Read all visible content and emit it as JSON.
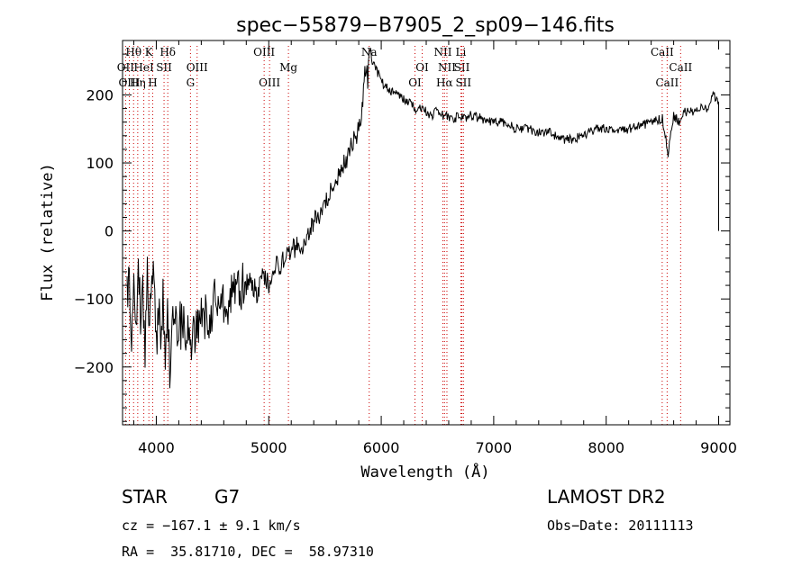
{
  "chart_data": {
    "type": "line",
    "title": "spec−55879−B7905_2_sp09−146.fits",
    "xlabel": "Wavelength (Å)",
    "ylabel": "Flux (relative)",
    "xlim": [
      3700,
      9100
    ],
    "ylim": [
      -285,
      280
    ],
    "x_ticks": [
      4000,
      5000,
      6000,
      7000,
      8000,
      9000
    ],
    "y_ticks": [
      -200,
      -100,
      0,
      100,
      200
    ],
    "grid": false,
    "line_color": "#000000",
    "marker_color": "#cc0000",
    "series": [
      {
        "x": [
          3740,
          3760,
          3780,
          3800,
          3820,
          3840,
          3860,
          3880,
          3900,
          3920,
          3940,
          3960,
          3980,
          4000,
          4020,
          4040,
          4060,
          4080,
          4100,
          4120,
          4140,
          4160,
          4180,
          4200,
          4250,
          4300,
          4350,
          4400,
          4450,
          4500,
          4550,
          4600,
          4650,
          4700,
          4750,
          4800,
          4850,
          4900,
          4950,
          5000,
          5050,
          5100,
          5150,
          5200,
          5250,
          5300,
          5350,
          5400,
          5450,
          5500,
          5550,
          5600,
          5650,
          5700,
          5750,
          5800,
          5830,
          5860,
          5880,
          5900,
          5920,
          5950,
          6000,
          6050,
          6100,
          6150,
          6200,
          6250,
          6300,
          6350,
          6400,
          6450,
          6500,
          6550,
          6600,
          6650,
          6700,
          6750,
          6800,
          6900,
          7000,
          7100,
          7200,
          7300,
          7400,
          7500,
          7600,
          7700,
          7800,
          7900,
          8000,
          8100,
          8200,
          8300,
          8400,
          8500,
          8550,
          8600,
          8650,
          8700,
          8800,
          8850,
          8900,
          8950,
          9000
        ],
        "y": [
          -100,
          -60,
          -200,
          -30,
          -140,
          -60,
          -120,
          -90,
          -170,
          -70,
          -140,
          -100,
          -60,
          -170,
          -110,
          -150,
          -90,
          -180,
          -120,
          -200,
          -150,
          -110,
          -160,
          -130,
          -150,
          -160,
          -140,
          -120,
          -130,
          -110,
          -100,
          -100,
          -100,
          -95,
          -85,
          -80,
          -75,
          -95,
          -60,
          -80,
          -50,
          -50,
          -40,
          -30,
          -20,
          -20,
          0,
          15,
          20,
          40,
          55,
          70,
          90,
          110,
          130,
          150,
          175,
          240,
          225,
          270,
          250,
          240,
          220,
          210,
          205,
          200,
          195,
          188,
          180,
          182,
          175,
          170,
          178,
          170,
          168,
          165,
          170,
          165,
          170,
          165,
          160,
          160,
          150,
          150,
          145,
          145,
          135,
          135,
          140,
          150,
          150,
          145,
          150,
          155,
          160,
          165,
          115,
          170,
          160,
          175,
          175,
          185,
          180,
          200,
          190
        ]
      }
    ],
    "spectral_lines": [
      {
        "name": "Hθ",
        "x": 3798,
        "row": 1
      },
      {
        "name": "K",
        "x": 3934,
        "row": 1
      },
      {
        "name": "Hδ",
        "x": 4102,
        "row": 1
      },
      {
        "name": "OIII",
        "x": 4959,
        "row": 1
      },
      {
        "name": "Na",
        "x": 5893,
        "row": 1
      },
      {
        "name": "NII",
        "x": 6548,
        "row": 1
      },
      {
        "name": "Li",
        "x": 6708,
        "row": 1
      },
      {
        "name": "CaII",
        "x": 8498,
        "row": 1
      },
      {
        "name": "OII",
        "x": 3727,
        "row": 2
      },
      {
        "name": "HeI",
        "x": 3889,
        "row": 2
      },
      {
        "name": "SII",
        "x": 4069,
        "row": 2
      },
      {
        "name": "OIII",
        "x": 4363,
        "row": 2
      },
      {
        "name": "Mg",
        "x": 5175,
        "row": 2
      },
      {
        "name": "OI",
        "x": 6364,
        "row": 2
      },
      {
        "name": "NII",
        "x": 6584,
        "row": 2
      },
      {
        "name": "SII",
        "x": 6717,
        "row": 2
      },
      {
        "name": "CaII",
        "x": 8662,
        "row": 2
      },
      {
        "name": "OIII",
        "x": 3760,
        "row": 3
      },
      {
        "name": "Hη",
        "x": 3835,
        "row": 3
      },
      {
        "name": "H",
        "x": 3968,
        "row": 3
      },
      {
        "name": "G",
        "x": 4304,
        "row": 3
      },
      {
        "name": "OIII",
        "x": 5007,
        "row": 3
      },
      {
        "name": "OI",
        "x": 6300,
        "row": 3
      },
      {
        "name": "Hα",
        "x": 6563,
        "row": 3
      },
      {
        "name": "SII",
        "x": 6731,
        "row": 3
      },
      {
        "name": "CaII",
        "x": 8542,
        "row": 3
      }
    ]
  },
  "info": {
    "object_class": "STAR",
    "subclass": "G7",
    "cz": "cz = −167.1 ± 9.1 km/s",
    "coords": "RA =  35.81710, DEC =  58.97310",
    "survey": "LAMOST DR2",
    "obs_date": "Obs−Date: 20111113"
  }
}
